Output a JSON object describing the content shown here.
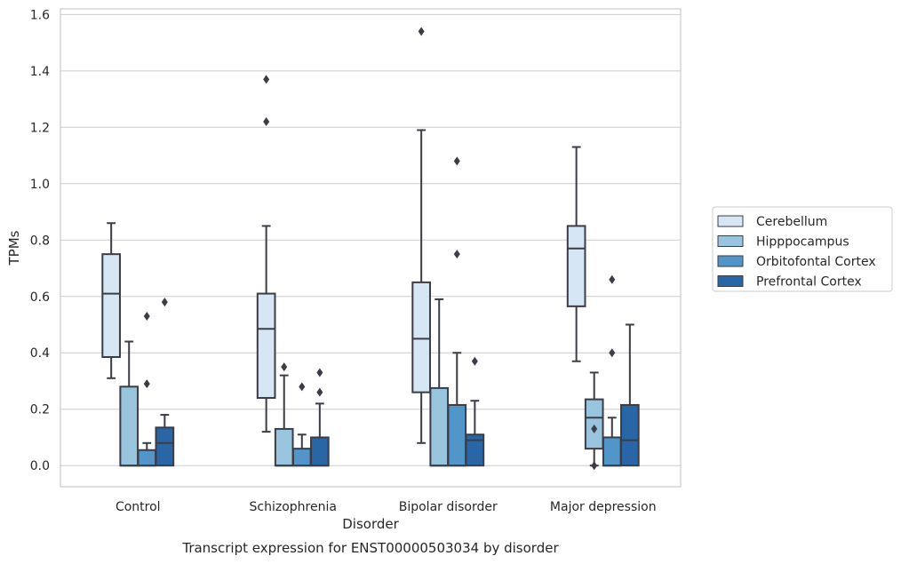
{
  "chart_data": {
    "type": "box",
    "title": "",
    "caption": "Transcript expression for ENST00000503034 by disorder",
    "xlabel": "Disorder",
    "ylabel": "TPMs",
    "ylim": [
      -0.075,
      1.62
    ],
    "yticks": [
      "0.0",
      "0.2",
      "0.4",
      "0.6",
      "0.8",
      "1.0",
      "1.2",
      "1.4",
      "1.6"
    ],
    "grid": "horizontal",
    "legend_position": "right",
    "categories": [
      "Control",
      "Schizophrenia",
      "Bipolar disorder",
      "Major depression"
    ],
    "series": [
      {
        "name": "Cerebellum",
        "color": "#d6e6f4",
        "boxes": [
          {
            "whisker_low": 0.31,
            "q1": 0.385,
            "median": 0.61,
            "q3": 0.75,
            "whisker_high": 0.86,
            "outliers": []
          },
          {
            "whisker_low": 0.12,
            "q1": 0.24,
            "median": 0.485,
            "q3": 0.61,
            "whisker_high": 0.85,
            "outliers": [
              1.37,
              1.22
            ]
          },
          {
            "whisker_low": 0.08,
            "q1": 0.26,
            "median": 0.45,
            "q3": 0.65,
            "whisker_high": 1.19,
            "outliers": [
              1.54
            ]
          },
          {
            "whisker_low": 0.37,
            "q1": 0.565,
            "median": 0.77,
            "q3": 0.85,
            "whisker_high": 1.13,
            "outliers": []
          }
        ]
      },
      {
        "name": "Hipppocampus",
        "color": "#99c4de",
        "boxes": [
          {
            "whisker_low": 0.0,
            "q1": 0.0,
            "median": 0.0,
            "q3": 0.28,
            "whisker_high": 0.44,
            "outliers": []
          },
          {
            "whisker_low": 0.0,
            "q1": 0.0,
            "median": 0.0,
            "q3": 0.13,
            "whisker_high": 0.32,
            "outliers": [
              0.35
            ]
          },
          {
            "whisker_low": 0.0,
            "q1": 0.0,
            "median": 0.0,
            "q3": 0.275,
            "whisker_high": 0.59,
            "outliers": []
          },
          {
            "whisker_low": 0.0,
            "q1": 0.06,
            "median": 0.17,
            "q3": 0.235,
            "whisker_high": 0.33,
            "outliers": [
              0.13,
              0.0
            ]
          }
        ]
      },
      {
        "name": "Orbitofontal Cortex",
        "color": "#5296c9",
        "boxes": [
          {
            "whisker_low": 0.0,
            "q1": 0.0,
            "median": 0.0,
            "q3": 0.055,
            "whisker_high": 0.08,
            "outliers": [
              0.53,
              0.29
            ]
          },
          {
            "whisker_low": 0.0,
            "q1": 0.0,
            "median": 0.0,
            "q3": 0.06,
            "whisker_high": 0.11,
            "outliers": [
              0.28
            ]
          },
          {
            "whisker_low": 0.0,
            "q1": 0.0,
            "median": 0.0,
            "q3": 0.215,
            "whisker_high": 0.4,
            "outliers": [
              1.08,
              0.75
            ]
          },
          {
            "whisker_low": 0.0,
            "q1": 0.0,
            "median": 0.0,
            "q3": 0.1,
            "whisker_high": 0.17,
            "outliers": [
              0.66,
              0.4
            ]
          }
        ]
      },
      {
        "name": "Prefrontal Cortex",
        "color": "#2866a6",
        "boxes": [
          {
            "whisker_low": 0.0,
            "q1": 0.0,
            "median": 0.08,
            "q3": 0.135,
            "whisker_high": 0.18,
            "outliers": [
              0.58
            ]
          },
          {
            "whisker_low": 0.0,
            "q1": 0.0,
            "median": 0.0,
            "q3": 0.1,
            "whisker_high": 0.22,
            "outliers": [
              0.33,
              0.26
            ]
          },
          {
            "whisker_low": 0.0,
            "q1": 0.0,
            "median": 0.09,
            "q3": 0.11,
            "whisker_high": 0.23,
            "outliers": [
              0.37
            ]
          },
          {
            "whisker_low": 0.0,
            "q1": 0.0,
            "median": 0.09,
            "q3": 0.215,
            "whisker_high": 0.5,
            "outliers": []
          }
        ]
      }
    ]
  }
}
